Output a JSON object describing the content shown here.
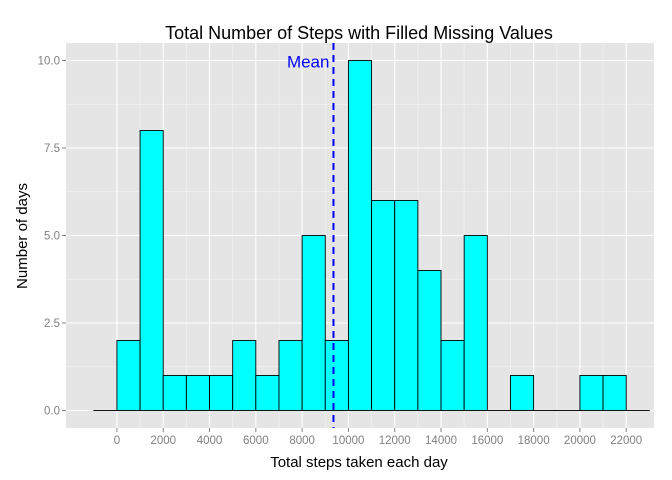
{
  "chart_data": {
    "type": "bar",
    "title": "Total Number of Steps with Filled Missing Values",
    "xlabel": "Total steps taken each day",
    "ylabel": "Number of days",
    "bin_width": 1000,
    "bin_starts": [
      -1000,
      0,
      1000,
      2000,
      3000,
      4000,
      5000,
      6000,
      7000,
      8000,
      9000,
      10000,
      11000,
      12000,
      13000,
      14000,
      15000,
      16000,
      17000,
      18000,
      19000,
      20000,
      21000,
      22000
    ],
    "values": [
      0,
      2,
      8,
      1,
      1,
      1,
      2,
      1,
      2,
      5,
      2,
      10,
      6,
      6,
      4,
      2,
      5,
      0,
      1,
      0,
      0,
      1,
      1,
      0
    ],
    "xlim": [
      -2200,
      23200
    ],
    "ylim": [
      -0.5,
      10.5
    ],
    "x_ticks": [
      0,
      2000,
      4000,
      6000,
      8000,
      10000,
      12000,
      14000,
      16000,
      18000,
      20000,
      22000
    ],
    "y_ticks": [
      0,
      2.5,
      5,
      7.5,
      10
    ],
    "y_tick_labels": [
      "0.0",
      "2.5",
      "5.0",
      "7.5",
      "10.0"
    ],
    "mean": 9354.23,
    "mean_label": "Mean",
    "grid": true,
    "legend": "none"
  },
  "colors": {
    "panel": "#e5e5e5",
    "grid_major": "#ffffff",
    "grid_minor": "#f2f2f2",
    "bar_fill": "#00ffff",
    "bar_stroke": "#000000",
    "mean_line": "#0000ff",
    "tick_label": "#7f7f7f"
  }
}
